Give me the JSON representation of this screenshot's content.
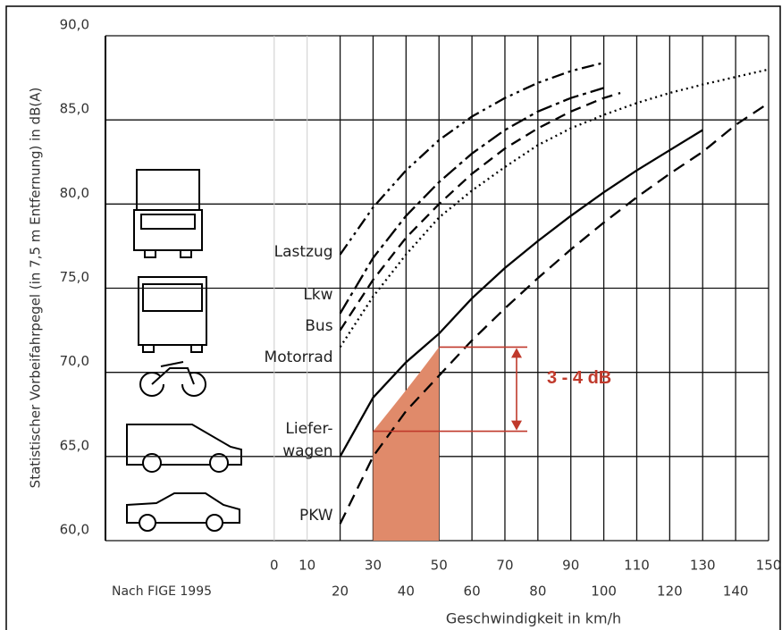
{
  "chart_data": {
    "type": "line",
    "y_label": "Statistischer Vorbeifahrpegel (in 7,5 m Entfernung) in dB(A)",
    "x_label": "Geschwindigkeit in km/h",
    "source": "Nach FIGE 1995",
    "xlim": [
      -51.2,
      150
    ],
    "ylim": [
      60,
      90
    ],
    "xticks": [
      0,
      10,
      20,
      30,
      40,
      50,
      60,
      70,
      80,
      90,
      100,
      110,
      120,
      130,
      140,
      150
    ],
    "yticks": [
      {
        "value": 60,
        "label": "60,0"
      },
      {
        "value": 65,
        "label": "65,0"
      },
      {
        "value": 70,
        "label": "70,0"
      },
      {
        "value": 75,
        "label": "75,0"
      },
      {
        "value": 80,
        "label": "80,0"
      },
      {
        "value": 85,
        "label": "85,0"
      },
      {
        "value": 90,
        "label": "90,0"
      }
    ],
    "grid": true,
    "series": [
      {
        "name": "Lastzug",
        "color": "#000000",
        "x": [
          20,
          30,
          40,
          50,
          60,
          70,
          80,
          90,
          100
        ],
        "values": [
          77,
          79.8,
          82,
          83.8,
          85.2,
          86.3,
          87.2,
          87.9,
          88.4
        ]
      },
      {
        "name": "Lkw",
        "color": "#000000",
        "x": [
          20,
          30,
          40,
          50,
          60,
          70,
          80,
          90,
          100
        ],
        "values": [
          73.5,
          76.8,
          79.3,
          81.3,
          83,
          84.4,
          85.5,
          86.3,
          86.9
        ]
      },
      {
        "name": "Bus",
        "color": "#000000",
        "x": [
          20,
          30,
          40,
          50,
          60,
          70,
          80,
          90,
          100,
          105
        ],
        "values": [
          72.5,
          75.5,
          78,
          80,
          81.8,
          83.3,
          84.5,
          85.5,
          86.3,
          86.6
        ]
      },
      {
        "name": "Motorrad",
        "color": "#000000",
        "x": [
          20,
          30,
          40,
          50,
          60,
          70,
          80,
          90,
          100,
          110,
          120,
          130,
          150
        ],
        "values": [
          71.5,
          74.5,
          77,
          79.2,
          80.8,
          82.2,
          83.5,
          84.5,
          85.3,
          86,
          86.6,
          87.1,
          88
        ]
      },
      {
        "name": "Liefer-\nwagen",
        "color": "#000000",
        "x": [
          20,
          30,
          40,
          50,
          60,
          70,
          80,
          90,
          100,
          110,
          120,
          130
        ],
        "values": [
          65,
          68.5,
          70.6,
          72.3,
          74.4,
          76.2,
          77.8,
          79.3,
          80.7,
          82,
          83.2,
          84.4
        ]
      },
      {
        "name": "PKW",
        "color": "#000000",
        "x": [
          20,
          25,
          30,
          40,
          50,
          60,
          70,
          80,
          90,
          100,
          110,
          120,
          130,
          140,
          150
        ],
        "values": [
          61,
          63,
          65,
          67.7,
          69.8,
          71.9,
          73.8,
          75.6,
          77.3,
          78.9,
          80.4,
          81.8,
          83.1,
          84.7,
          86
        ]
      }
    ],
    "highlight": {
      "color": "#e08a6a",
      "x": [
        30,
        50
      ],
      "values": [
        66.5,
        71.5
      ]
    },
    "annotation": {
      "text": "3 - 4 dB",
      "color": "#c0392b",
      "lower": 66.5,
      "upper": 71.5
    }
  }
}
